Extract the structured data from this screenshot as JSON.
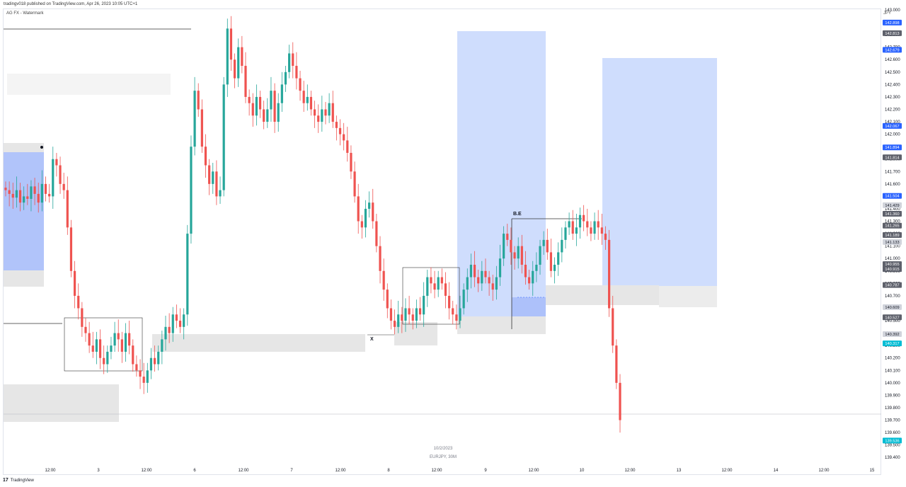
{
  "header": {
    "publisher": "tradingv018 published on TradingView.com, Apr 26, 2023 10:05 UTC+1"
  },
  "chart_title": "AG FX - Watermark",
  "currency": "JPY",
  "center_date": "10/2/2023",
  "symbol": "EURJPY, 30M",
  "footer_brand": "TradingView",
  "colors": {
    "up": "#26a69a",
    "down": "#ef5350",
    "zone_blue": "#c7d7fd",
    "zone_blue_dark": "#a9befa",
    "zone_gray": "#e6e6e6",
    "accent": "#2962ff"
  },
  "chart_data": {
    "type": "candlestick",
    "ylim": [
      139.35,
      143.0
    ],
    "x_ticks": [
      "12:00",
      "3",
      "12:00",
      "6",
      "12:00",
      "7",
      "12:00",
      "8",
      "12:00",
      "9",
      "12:00",
      "10",
      "12:00",
      "13",
      "12:00",
      "14",
      "12:00",
      "15"
    ],
    "y_ticks": [
      "143.000",
      "142.900",
      "142.800",
      "142.700",
      "142.600",
      "142.500",
      "142.400",
      "142.300",
      "142.200",
      "142.100",
      "142.000",
      "141.900",
      "141.800",
      "141.700",
      "141.600",
      "141.500",
      "141.400",
      "141.300",
      "141.200",
      "141.100",
      "141.000",
      "140.900",
      "140.800",
      "140.700",
      "140.600",
      "140.500",
      "140.400",
      "140.300",
      "140.200",
      "140.100",
      "140.000",
      "139.900",
      "139.800",
      "139.700",
      "139.600",
      "139.500",
      "139.400"
    ],
    "price_labels": [
      {
        "text": "142.898",
        "style": "blue"
      },
      {
        "text": "142.813",
        "style": "gray"
      },
      {
        "text": "142.679",
        "style": "blue"
      },
      {
        "text": "142.067",
        "style": "blue"
      },
      {
        "text": "141.894",
        "style": "blue"
      },
      {
        "text": "141.814",
        "style": "gray"
      },
      {
        "text": "141.504",
        "style": "blue"
      },
      {
        "text": "141.429",
        "style": "light"
      },
      {
        "text": "141.360",
        "style": "gray"
      },
      {
        "text": "141.265",
        "style": "gray"
      },
      {
        "text": "141.189",
        "style": "gray"
      },
      {
        "text": "141.133",
        "style": "light"
      },
      {
        "text": "140.955",
        "style": "gray"
      },
      {
        "text": "140.915",
        "style": "gray"
      },
      {
        "text": "140.787",
        "style": "gray"
      },
      {
        "text": "140.609",
        "style": "light"
      },
      {
        "text": "140.527",
        "style": "gray"
      },
      {
        "text": "140.392",
        "style": "light"
      },
      {
        "text": "140.317",
        "style": "teal"
      },
      {
        "text": "139.536",
        "style": "teal"
      }
    ],
    "annotations": [
      {
        "text": "B.E"
      },
      {
        "text": "X"
      }
    ],
    "series_close": [
      141.55,
      141.52,
      141.49,
      141.55,
      141.45,
      141.5,
      141.48,
      141.58,
      141.52,
      141.45,
      141.6,
      141.52,
      141.5,
      141.8,
      141.75,
      141.6,
      141.55,
      141.25,
      140.9,
      140.7,
      140.6,
      140.45,
      140.4,
      140.3,
      140.25,
      140.35,
      140.2,
      140.15,
      140.25,
      140.3,
      140.4,
      140.35,
      140.25,
      140.4,
      140.3,
      140.15,
      140.1,
      140.05,
      140.0,
      140.1,
      140.2,
      140.15,
      140.25,
      140.35,
      140.45,
      140.4,
      140.55,
      140.5,
      140.45,
      140.55,
      141.2,
      141.9,
      142.35,
      142.2,
      141.9,
      141.75,
      141.6,
      141.7,
      141.5,
      141.55,
      142.4,
      142.85,
      142.6,
      142.45,
      142.7,
      142.55,
      142.3,
      142.25,
      142.15,
      142.3,
      142.2,
      142.1,
      142.2,
      142.35,
      142.1,
      142.25,
      142.4,
      142.5,
      142.65,
      142.55,
      142.45,
      142.35,
      142.25,
      142.3,
      142.2,
      142.15,
      142.1,
      142.2,
      142.15,
      142.25,
      142.1,
      142.05,
      142.0,
      141.95,
      141.85,
      141.7,
      141.5,
      141.3,
      141.25,
      141.4,
      141.45,
      141.3,
      141.1,
      140.9,
      140.75,
      140.6,
      140.5,
      140.45,
      140.55,
      140.5,
      140.6,
      140.55,
      140.5,
      140.6,
      140.55,
      140.7,
      140.85,
      140.8,
      140.75,
      140.85,
      140.8,
      140.7,
      140.6,
      140.55,
      140.5,
      140.6,
      140.75,
      140.85,
      140.95,
      140.85,
      140.8,
      140.9,
      140.85,
      140.8,
      140.75,
      140.85,
      141.0,
      141.2,
      141.15,
      141.05,
      141.0,
      141.1,
      140.95,
      140.85,
      140.8,
      140.9,
      140.95,
      141.1,
      141.15,
      141.05,
      140.9,
      140.95,
      141.05,
      141.15,
      141.25,
      141.3,
      141.2,
      141.25,
      141.35,
      141.3,
      141.25,
      141.2,
      141.3,
      141.25,
      141.2,
      141.15,
      140.6,
      140.3,
      140.0,
      139.7
    ]
  }
}
